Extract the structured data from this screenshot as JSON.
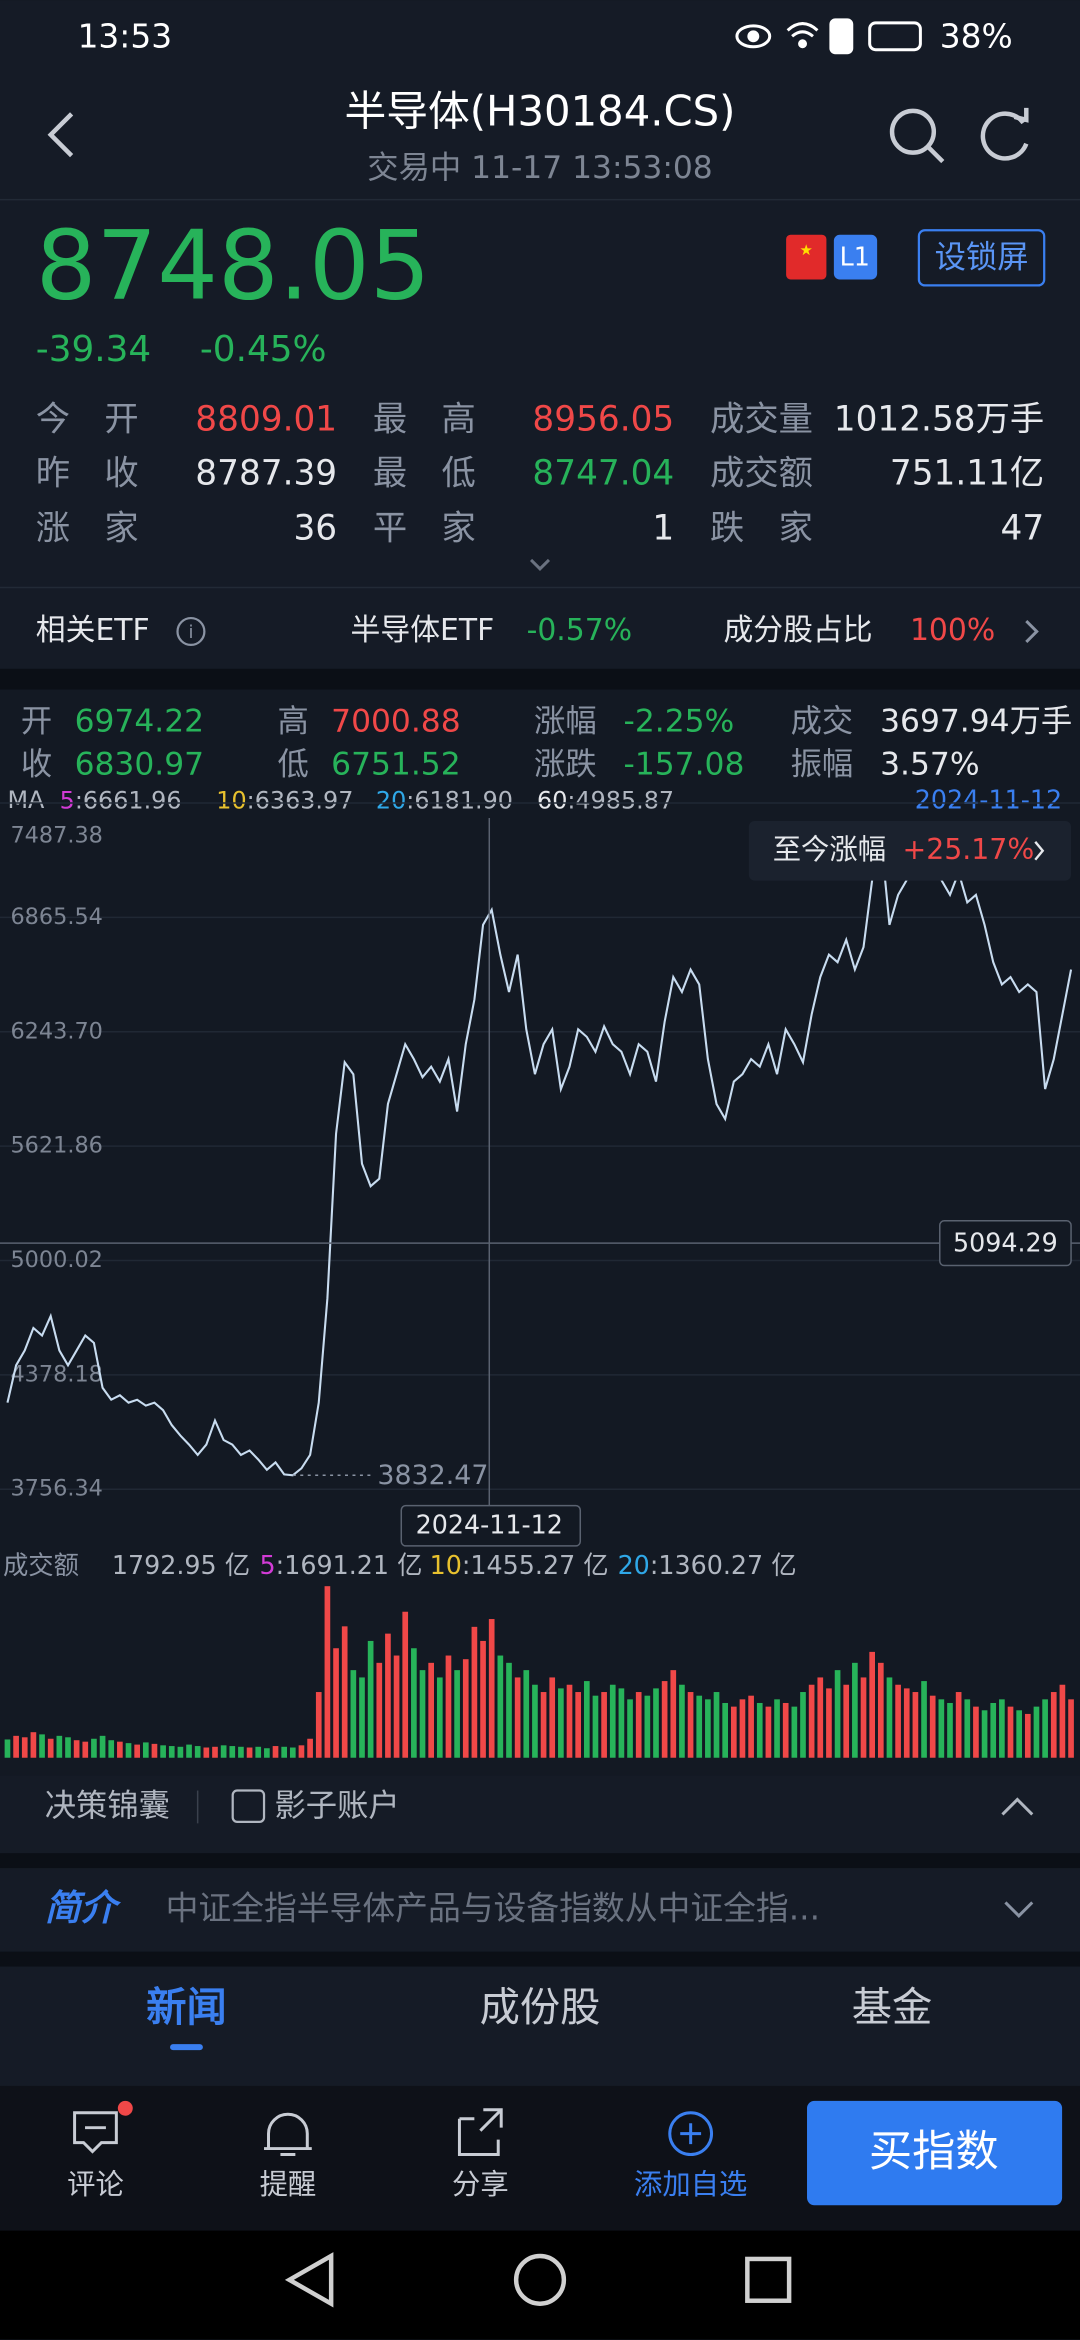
{
  "status_bar": {
    "time": "13:53",
    "battery": "38%"
  },
  "header": {
    "title": "半导体(H30184.CS)",
    "subtitle": "交易中 11-17 13:53:08"
  },
  "quote": {
    "price": "8748.05",
    "change": "-39.34",
    "change_pct": "-0.45%",
    "badge": "L1",
    "lock_button": "设锁屏"
  },
  "stats": {
    "rows": [
      [
        {
          "label": "今　开",
          "value": "8809.01",
          "color": "#f04848"
        },
        {
          "label": "最　高",
          "value": "8956.05",
          "color": "#f04848"
        },
        {
          "label": "成交量",
          "value": "1012.58万手",
          "color": "#e6e8ec"
        }
      ],
      [
        {
          "label": "昨　收",
          "value": "8787.39",
          "color": "#e6e8ec"
        },
        {
          "label": "最　低",
          "value": "8747.04",
          "color": "#27b35a"
        },
        {
          "label": "成交额",
          "value": "751.11亿",
          "color": "#e6e8ec"
        }
      ],
      [
        {
          "label": "涨　家",
          "value": "36",
          "color": "#e6e8ec"
        },
        {
          "label": "平　家",
          "value": "1",
          "color": "#e6e8ec"
        },
        {
          "label": "跌　家",
          "value": "47",
          "color": "#e6e8ec"
        }
      ]
    ]
  },
  "etf": {
    "label": "相关ETF",
    "name": "半导体ETF",
    "change": "-0.57%",
    "ratio_label": "成分股占比",
    "ratio": "100%"
  },
  "chart_info": {
    "rows": [
      [
        {
          "label": "开",
          "value": "6974.22",
          "color": "#27b35a"
        },
        {
          "label": "高",
          "value": "7000.88",
          "color": "#f04848"
        },
        {
          "label": "涨幅",
          "value": "-2.25%",
          "color": "#27b35a"
        },
        {
          "label": "成交",
          "value": "3697.94万手",
          "color": "#e6e8ec"
        }
      ],
      [
        {
          "label": "收",
          "value": "6830.97",
          "color": "#27b35a"
        },
        {
          "label": "低",
          "value": "6751.52",
          "color": "#27b35a"
        },
        {
          "label": "涨跌",
          "value": "-157.08",
          "color": "#27b35a"
        },
        {
          "label": "振幅",
          "value": "3.57%",
          "color": "#e6e8ec"
        }
      ]
    ],
    "ma_label": "MA",
    "ma": [
      {
        "key": "5",
        "text": ":6661.96",
        "color": "#d23bd6"
      },
      {
        "key": "10",
        "text": ":6363.97",
        "color": "#e8c12e"
      },
      {
        "key": "20",
        "text": ":6181.90",
        "color": "#2fa8e8"
      },
      {
        "key": "60",
        "text": ":4985.87",
        "color": "#e6e8ec"
      }
    ],
    "date": "2024-11-12"
  },
  "chart_data": [
    {
      "type": "line",
      "color": "#c8dcf0",
      "grid": true,
      "values": [
        4227,
        4430,
        4511,
        4633,
        4592,
        4698,
        4511,
        4430,
        4511,
        4592,
        4552,
        4308,
        4243,
        4267,
        4227,
        4243,
        4211,
        4227,
        4186,
        4105,
        4048,
        3999,
        3943,
        3999,
        4130,
        4024,
        3999,
        3943,
        3967,
        3918,
        3862,
        3902,
        3837,
        3832,
        3870,
        3943,
        4227,
        4795,
        5689,
        6078,
        6013,
        5526,
        5404,
        5445,
        5851,
        6013,
        6176,
        6095,
        5997,
        6054,
        5973,
        6095,
        5810,
        6176,
        6419,
        6825,
        6907,
        6663,
        6460,
        6663,
        6257,
        6013,
        6176,
        6257,
        5932,
        6054,
        6257,
        6216,
        6135,
        6273,
        6176,
        6135,
        6013,
        6176,
        6135,
        5973,
        6298,
        6541,
        6460,
        6582,
        6501,
        6095,
        5851,
        5770,
        5973,
        6013,
        6095,
        6054,
        6176,
        6013,
        6257,
        6176,
        6078,
        6338,
        6541,
        6663,
        6622,
        6744,
        6582,
        6704,
        7069,
        7313,
        6825,
        6988,
        7069,
        7231,
        7150,
        7231,
        7069,
        6988,
        7110,
        6947,
        6988,
        6825,
        6622,
        6501,
        6541,
        6460,
        6501,
        6460,
        5932,
        6095,
        6338,
        6582
      ],
      "ylim": [
        3756.34,
        7487.38
      ],
      "yticks": [
        3756.34,
        4378.18,
        5000.02,
        5621.86,
        {
          "value": 6243.7,
          "label": "6243.70"
        },
        6865.54,
        7487.38
      ],
      "crosshair_value": 5094.29,
      "crosshair_date": "2024-11-12",
      "min_value": 3832.47,
      "since_label": "至今涨幅",
      "since_value": "+25.17%"
    },
    {
      "type": "bar",
      "title": "成交额",
      "current": "1792.95 亿",
      "up_color": "#f04848",
      "down_color": "#27b35a",
      "ma": [
        {
          "key": "5",
          "text": ":1691.21 亿",
          "color": "#d23bd6"
        },
        {
          "key": "10",
          "text": ":1455.27 亿",
          "color": "#e8c12e"
        },
        {
          "key": "20",
          "text": ":1360.27 亿",
          "color": "#2fa8e8"
        }
      ],
      "values": [
        250,
        300,
        280,
        350,
        320,
        260,
        300,
        280,
        240,
        220,
        260,
        300,
        240,
        220,
        200,
        180,
        210,
        190,
        170,
        160,
        150,
        180,
        160,
        140,
        150,
        170,
        160,
        150,
        140,
        150,
        130,
        160,
        150,
        140,
        170,
        260,
        900,
        2350,
        1500,
        1800,
        1200,
        1100,
        1600,
        1300,
        1700,
        1400,
        2000,
        1500,
        1200,
        1300,
        1100,
        1400,
        1200,
        1350,
        1793,
        1600,
        1900,
        1400,
        1300,
        1100,
        1200,
        1000,
        900,
        1100,
        950,
        1000,
        900,
        1050,
        850,
        900,
        1000,
        950,
        800,
        900,
        850,
        950,
        1050,
        1200,
        1000,
        900,
        850,
        800,
        900,
        750,
        700,
        800,
        850,
        750,
        700,
        800,
        750,
        700,
        900,
        1000,
        1100,
        950,
        1200,
        1000,
        1300,
        1100,
        1450,
        1300,
        1100,
        1000,
        950,
        900,
        1050,
        850,
        800,
        750,
        900,
        800,
        700,
        650,
        750,
        800,
        700,
        650,
        600,
        700,
        800,
        900,
        1000,
        800
      ]
    }
  ],
  "tools": [
    "决策锦囊",
    "影子账户"
  ],
  "intro": {
    "label": "简介",
    "text": "中证全指半导体产品与设备指数从中证全指..."
  },
  "tabs": [
    "新闻",
    "成份股",
    "基金"
  ],
  "actions": [
    "评论",
    "提醒",
    "分享",
    "添加自选"
  ],
  "buy_button": "买指数"
}
